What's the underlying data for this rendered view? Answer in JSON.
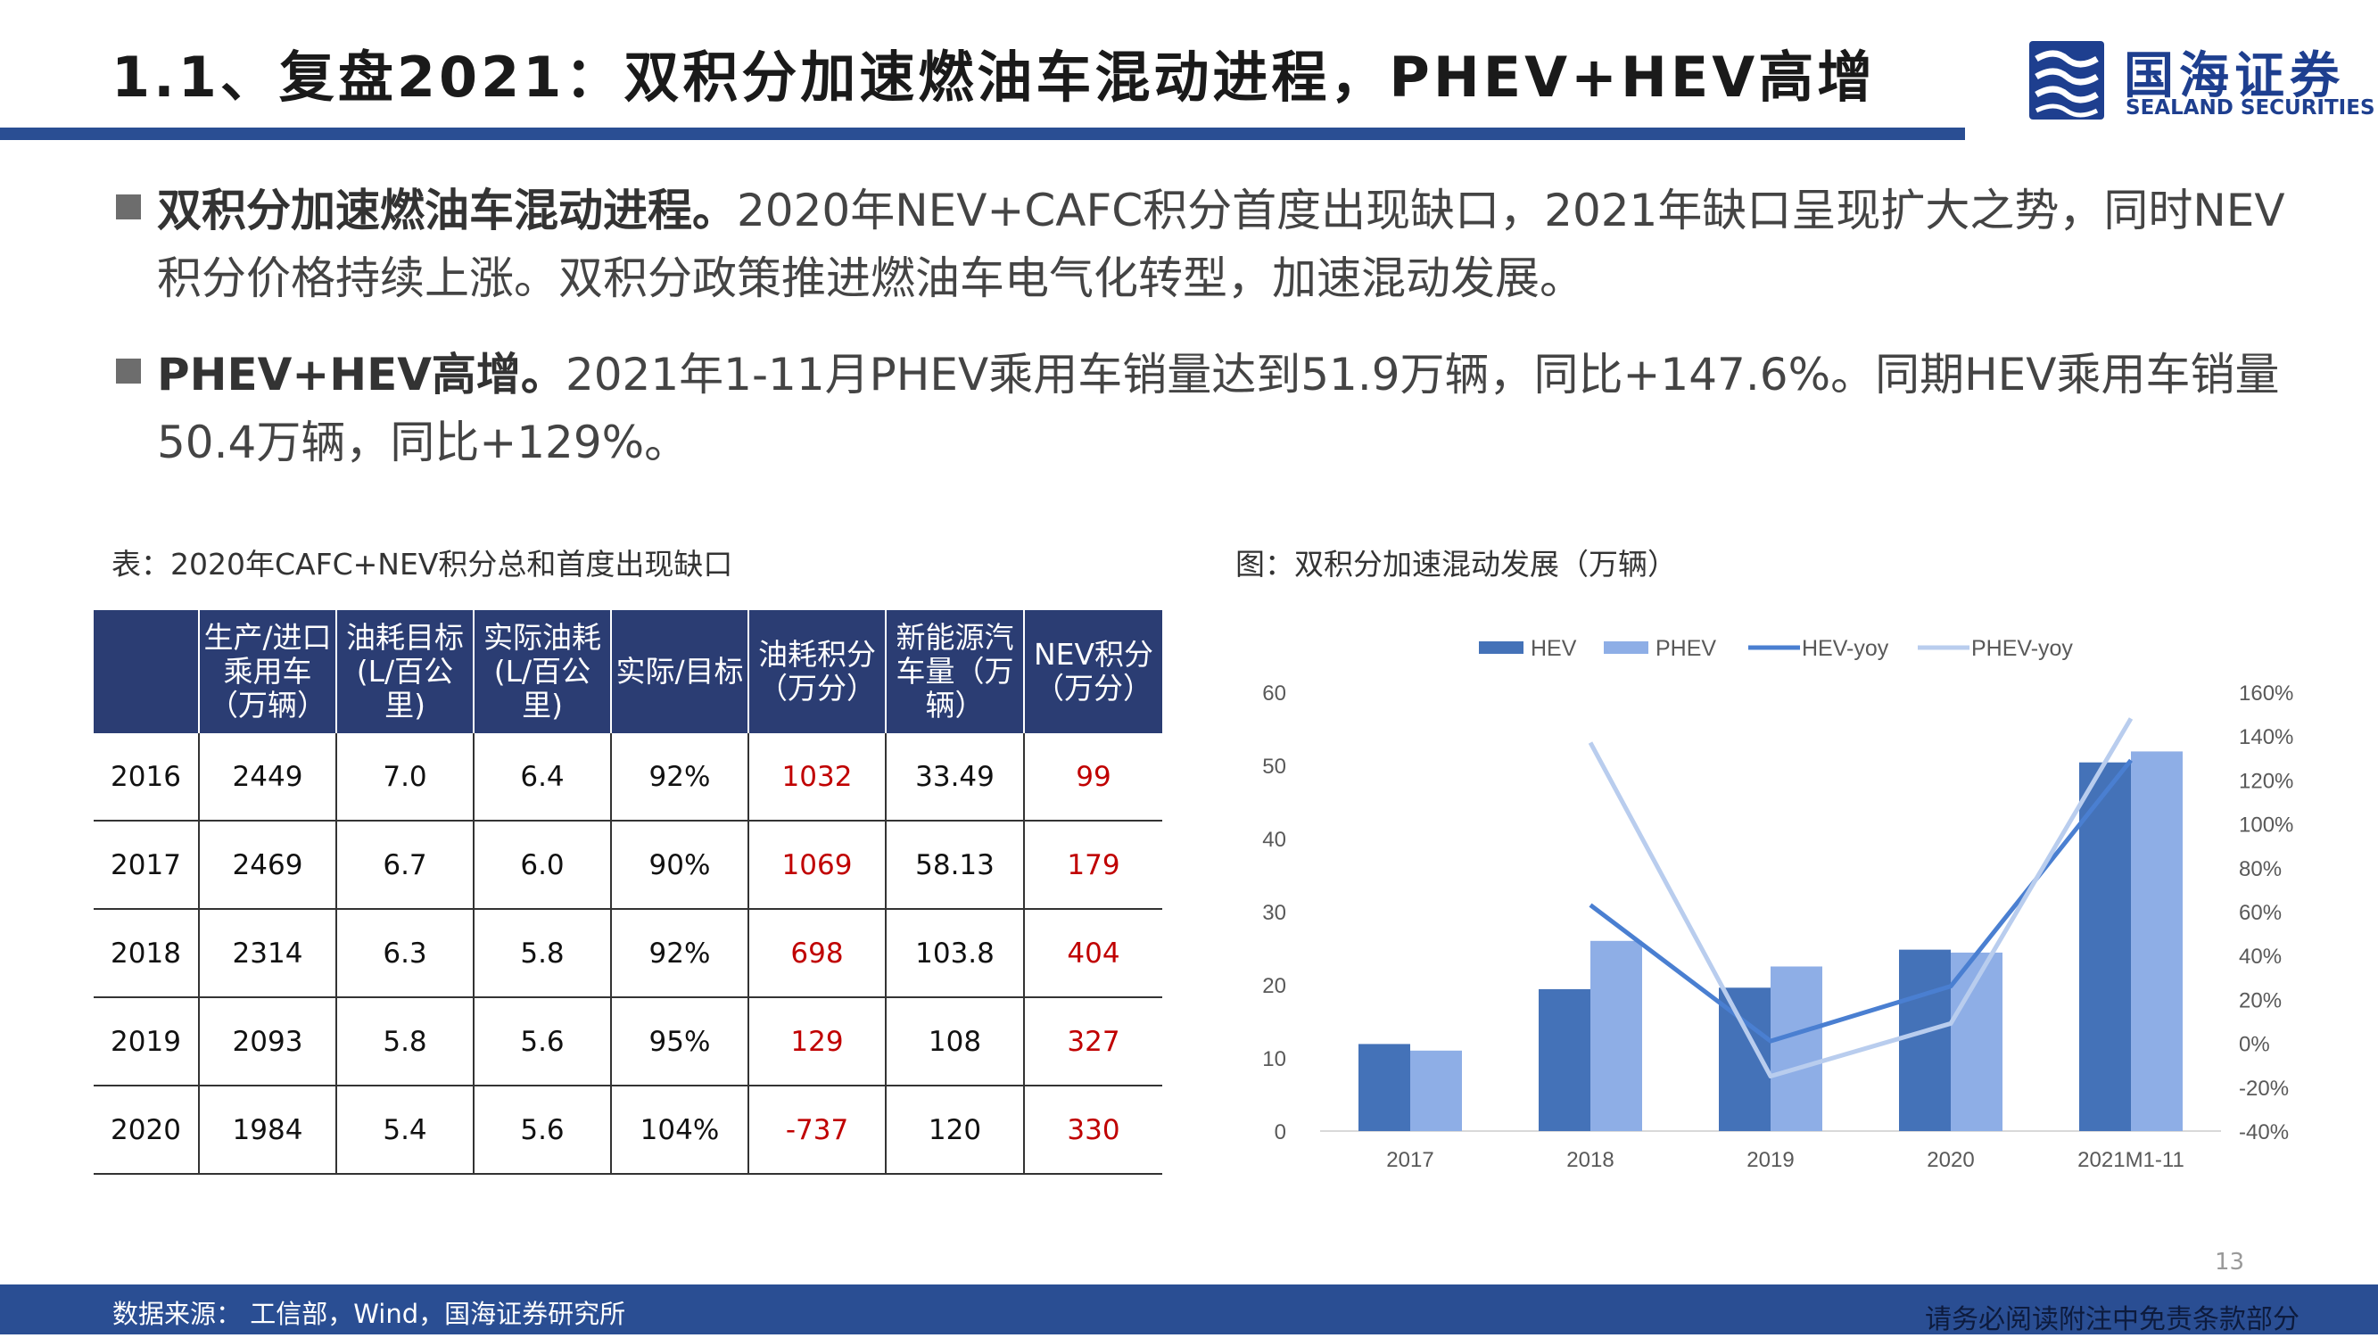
{
  "header": {
    "title": "1.1、复盘2021：双积分加速燃油车混动进程，PHEV+HEV高增",
    "logo_cn": "国海证券",
    "logo_en": "SEALAND SECURITIES"
  },
  "bullets": [
    {
      "lead": "双积分加速燃油车混动进程。",
      "text": "2020年NEV+CAFC积分首度出现缺口，2021年缺口呈现扩大之势，同时NEV积分价格持续上涨。双积分政策推进燃油车电气化转型，加速混动发展。"
    },
    {
      "lead": "PHEV+HEV高增。",
      "text": "2021年1-11月PHEV乘用车销量达到51.9万辆，同比+147.6%。同期HEV乘用车销量50.4万辆，同比+129%。"
    }
  ],
  "table": {
    "caption": "表：2020年CAFC+NEV积分总和首度出现缺口",
    "headers": [
      "",
      "生产/进口乘用车（万辆）",
      "油耗目标(L/百公里)",
      "实际油耗(L/百公里)",
      "实际/目标",
      "油耗积分（万分）",
      "新能源汽车量（万辆）",
      "NEV积分（万分）"
    ],
    "rows": [
      [
        "2016",
        "2449",
        "7.0",
        "6.4",
        "92%",
        "1032",
        "33.49",
        "99"
      ],
      [
        "2017",
        "2469",
        "6.7",
        "6.0",
        "90%",
        "1069",
        "58.13",
        "179"
      ],
      [
        "2018",
        "2314",
        "6.3",
        "5.8",
        "92%",
        "698",
        "103.8",
        "404"
      ],
      [
        "2019",
        "2093",
        "5.8",
        "5.6",
        "95%",
        "129",
        "108",
        "327"
      ],
      [
        "2020",
        "1984",
        "5.4",
        "5.6",
        "104%",
        "-737",
        "120",
        "330"
      ]
    ]
  },
  "chart_caption": "图：双积分加速混动发展（万辆）",
  "chart_data": {
    "type": "bar",
    "categories": [
      "2017",
      "2018",
      "2019",
      "2020",
      "2021M1-11"
    ],
    "series": [
      {
        "name": "HEV",
        "type": "bar",
        "axis": "left",
        "values": [
          11.9,
          19.4,
          19.6,
          24.8,
          50.4
        ]
      },
      {
        "name": "PHEV",
        "type": "bar",
        "axis": "left",
        "values": [
          11.0,
          26.0,
          22.5,
          24.4,
          51.9
        ]
      },
      {
        "name": "HEV-yoy",
        "type": "line",
        "axis": "right",
        "values": [
          null,
          63,
          1,
          26,
          129
        ]
      },
      {
        "name": "PHEV-yoy",
        "type": "line",
        "axis": "right",
        "values": [
          null,
          137,
          -15,
          9,
          148
        ]
      }
    ],
    "ylim_left": [
      0,
      60
    ],
    "yticks_left": [
      "0",
      "10",
      "20",
      "30",
      "40",
      "50",
      "60"
    ],
    "ylim_right": [
      -40,
      160
    ],
    "yticks_right": [
      "-40%",
      "-20%",
      "0%",
      "20%",
      "40%",
      "60%",
      "80%",
      "100%",
      "120%",
      "140%",
      "160%"
    ],
    "legend_position": "top",
    "grid": false,
    "colors": {
      "HEV": "#4472b8",
      "PHEV": "#8eaee6",
      "HEV-yoy": "#4a7fd1",
      "PHEV-yoy": "#b9cdee"
    }
  },
  "page_number": "13",
  "footer": {
    "source": "数据来源：  工信部，Wind，国海证券研究所",
    "disclaimer": "请务必阅读附注中免责条款部分"
  }
}
